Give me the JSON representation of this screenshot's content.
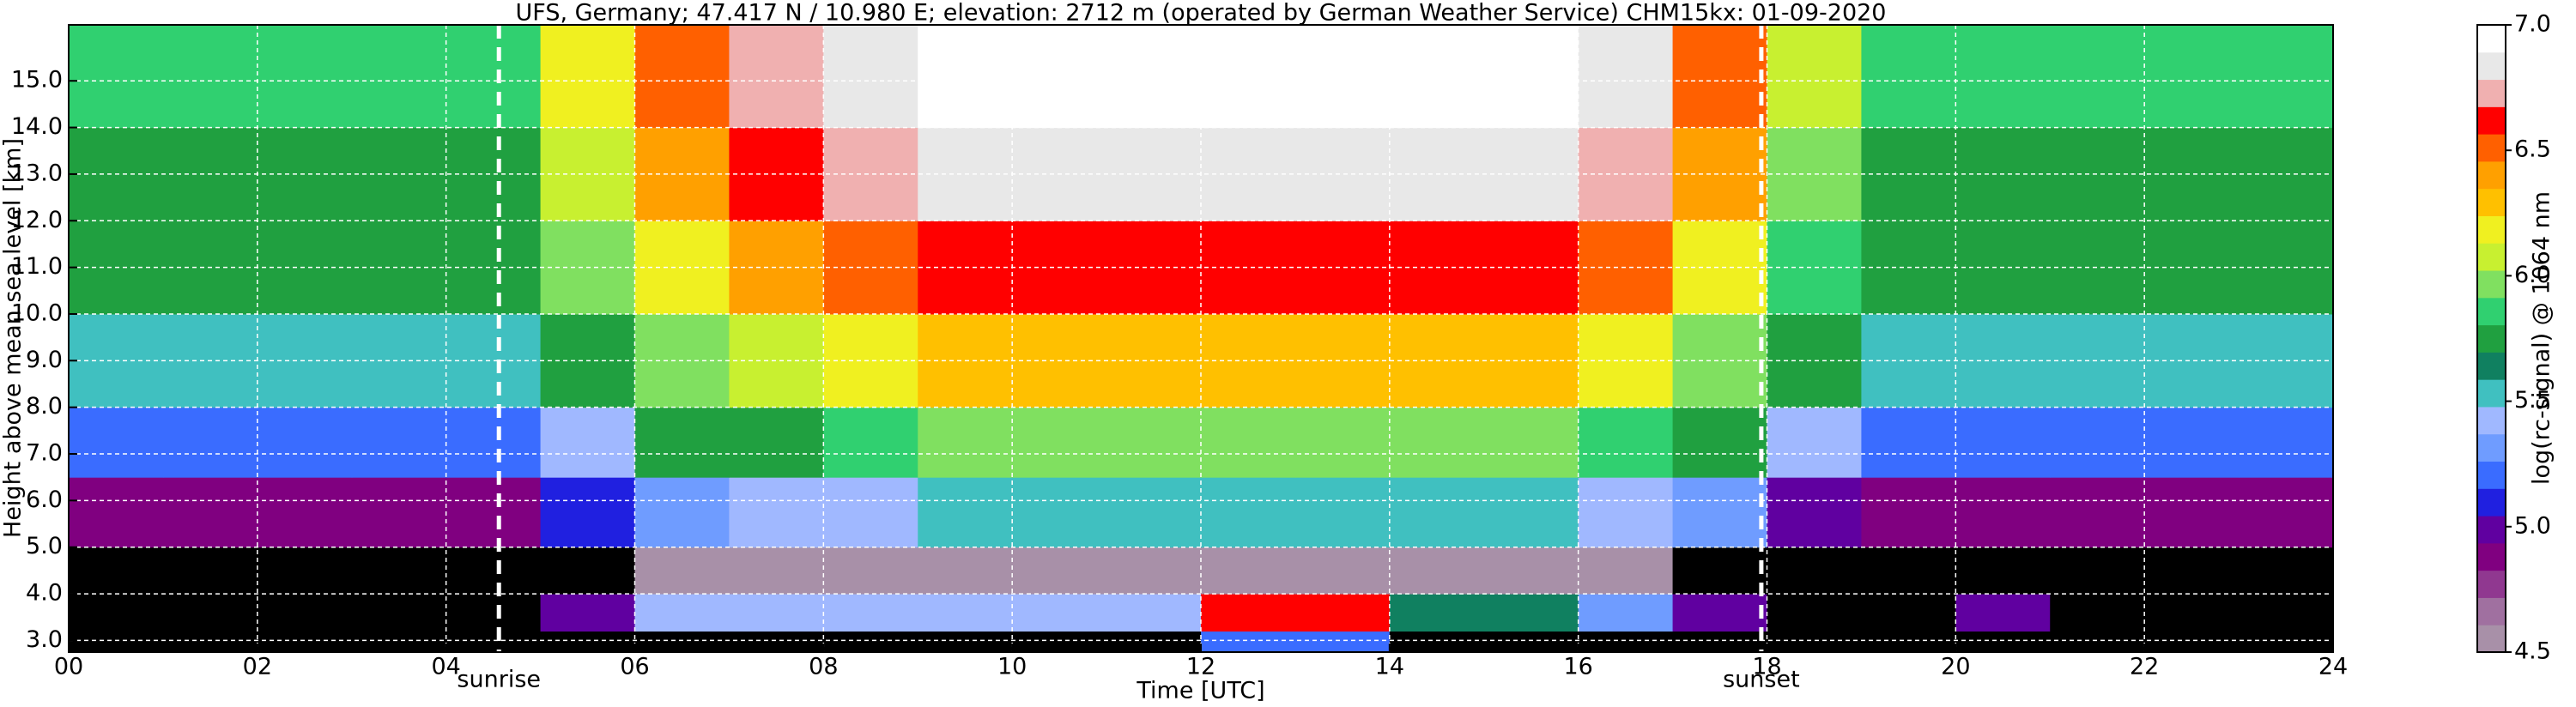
{
  "chart_data": {
    "type": "heatmap",
    "title": "UFS, Germany; 47.417 N / 10.980 E; elevation: 2712 m  (operated by German Weather Service)     CHM15kx: 01-09-2020",
    "x_label": "Time [UTC]",
    "y_label": "Height above mean sea level [km]",
    "colorbar_label": "log(rc-signal) @ 1064 nm",
    "xlim": [
      0,
      24
    ],
    "ylim": [
      2.75,
      16.2
    ],
    "xticks": [
      {
        "value": 0,
        "label": "00"
      },
      {
        "value": 2,
        "label": "02"
      },
      {
        "value": 4,
        "label": "04"
      },
      {
        "value": 6,
        "label": "06"
      },
      {
        "value": 8,
        "label": "08"
      },
      {
        "value": 10,
        "label": "10"
      },
      {
        "value": 12,
        "label": "12"
      },
      {
        "value": 14,
        "label": "14"
      },
      {
        "value": 16,
        "label": "16"
      },
      {
        "value": 18,
        "label": "18"
      },
      {
        "value": 20,
        "label": "20"
      },
      {
        "value": 22,
        "label": "22"
      },
      {
        "value": 24,
        "label": "24"
      }
    ],
    "yticks": [
      {
        "value": 3,
        "label": "3.0"
      },
      {
        "value": 4,
        "label": "4.0"
      },
      {
        "value": 5,
        "label": "5.0"
      },
      {
        "value": 6,
        "label": "6.0"
      },
      {
        "value": 7,
        "label": "7.0"
      },
      {
        "value": 8,
        "label": "8.0"
      },
      {
        "value": 9,
        "label": "9.0"
      },
      {
        "value": 10,
        "label": "10.0"
      },
      {
        "value": 11,
        "label": "11.0"
      },
      {
        "value": 12,
        "label": "12.0"
      },
      {
        "value": 13,
        "label": "13.0"
      },
      {
        "value": 14,
        "label": "14.0"
      },
      {
        "value": 15,
        "label": "15.0"
      }
    ],
    "grid": true,
    "clim": [
      4.5,
      7.0
    ],
    "cticks": [
      {
        "value": 4.5,
        "label": "4.5"
      },
      {
        "value": 5.0,
        "label": "5.0"
      },
      {
        "value": 5.5,
        "label": "5.5"
      },
      {
        "value": 6.0,
        "label": "6.0"
      },
      {
        "value": 6.5,
        "label": "6.5"
      },
      {
        "value": 7.0,
        "label": "7.0"
      }
    ],
    "under_color": "#000000",
    "colorscale": [
      "#a890a8",
      "#a070a0",
      "#903890",
      "#800080",
      "#6000a0",
      "#2020e0",
      "#3a6cff",
      "#6f9cff",
      "#a0b8ff",
      "#40c0c0",
      "#108060",
      "#20a040",
      "#30d070",
      "#80e060",
      "#c8f030",
      "#f0f020",
      "#ffc000",
      "#ffa000",
      "#ff6000",
      "#ff0000",
      "#f0b0b0",
      "#e8e8e8",
      "#ffffff"
    ],
    "x_edges": [
      0,
      1,
      2,
      3,
      4,
      5,
      6,
      7,
      8,
      9,
      10,
      11,
      12,
      13,
      14,
      15,
      16,
      17,
      18,
      19,
      20,
      21,
      22,
      23,
      24
    ],
    "y_edges": [
      2.75,
      3.2,
      4.0,
      5.0,
      6.5,
      8.0,
      10.0,
      12.0,
      14.0,
      16.2
    ],
    "z": [
      [
        4.3,
        4.3,
        4.3,
        4.3,
        4.3,
        4.3,
        4.3,
        4.3,
        4.3,
        4.3,
        4.3,
        4.3,
        5.2,
        5.2,
        4.3,
        4.3,
        4.3,
        4.3,
        4.3,
        4.3,
        4.3,
        4.3,
        4.3,
        4.3
      ],
      [
        4.3,
        4.3,
        4.3,
        4.3,
        4.3,
        5.0,
        5.4,
        5.4,
        5.4,
        5.4,
        5.4,
        5.4,
        6.6,
        6.6,
        5.6,
        5.6,
        5.3,
        5.0,
        4.3,
        4.3,
        5.0,
        4.3,
        4.3,
        4.3
      ],
      [
        4.3,
        4.3,
        4.3,
        4.3,
        4.3,
        4.4,
        4.6,
        4.6,
        4.6,
        4.6,
        4.6,
        4.6,
        4.6,
        4.6,
        4.6,
        4.6,
        4.6,
        4.4,
        4.3,
        4.3,
        4.3,
        4.3,
        4.3,
        4.3
      ],
      [
        4.9,
        4.9,
        4.9,
        4.9,
        4.9,
        5.1,
        5.3,
        5.4,
        5.4,
        5.5,
        5.5,
        5.5,
        5.5,
        5.5,
        5.5,
        5.5,
        5.4,
        5.3,
        5.0,
        4.9,
        4.9,
        4.9,
        4.9,
        4.9
      ],
      [
        5.2,
        5.2,
        5.2,
        5.2,
        5.2,
        5.4,
        5.7,
        5.8,
        5.9,
        6.0,
        6.0,
        6.0,
        6.0,
        6.0,
        6.0,
        6.0,
        5.9,
        5.7,
        5.4,
        5.2,
        5.2,
        5.2,
        5.2,
        5.2
      ],
      [
        5.5,
        5.5,
        5.5,
        5.5,
        5.5,
        5.7,
        6.0,
        6.1,
        6.2,
        6.3,
        6.3,
        6.3,
        6.3,
        6.3,
        6.3,
        6.3,
        6.2,
        6.0,
        5.7,
        5.5,
        5.5,
        5.5,
        5.5,
        5.5
      ],
      [
        5.7,
        5.7,
        5.7,
        5.7,
        5.7,
        6.0,
        6.2,
        6.4,
        6.5,
        6.6,
        6.6,
        6.6,
        6.6,
        6.6,
        6.6,
        6.6,
        6.5,
        6.2,
        5.9,
        5.7,
        5.7,
        5.7,
        5.7,
        5.7
      ],
      [
        5.8,
        5.8,
        5.8,
        5.8,
        5.8,
        6.1,
        6.4,
        6.6,
        6.7,
        6.8,
        6.8,
        6.8,
        6.8,
        6.8,
        6.8,
        6.8,
        6.7,
        6.4,
        6.0,
        5.8,
        5.8,
        5.8,
        5.8,
        5.8
      ],
      [
        5.9,
        5.9,
        5.9,
        5.9,
        5.9,
        6.2,
        6.5,
        6.7,
        6.8,
        6.9,
        6.9,
        6.9,
        6.9,
        6.9,
        6.9,
        6.9,
        6.8,
        6.5,
        6.1,
        5.9,
        5.9,
        5.9,
        5.9,
        5.9
      ]
    ],
    "annotations": [
      {
        "label": "sunrise",
        "x": 4.56
      },
      {
        "label": "sunset",
        "x": 17.94
      }
    ]
  }
}
